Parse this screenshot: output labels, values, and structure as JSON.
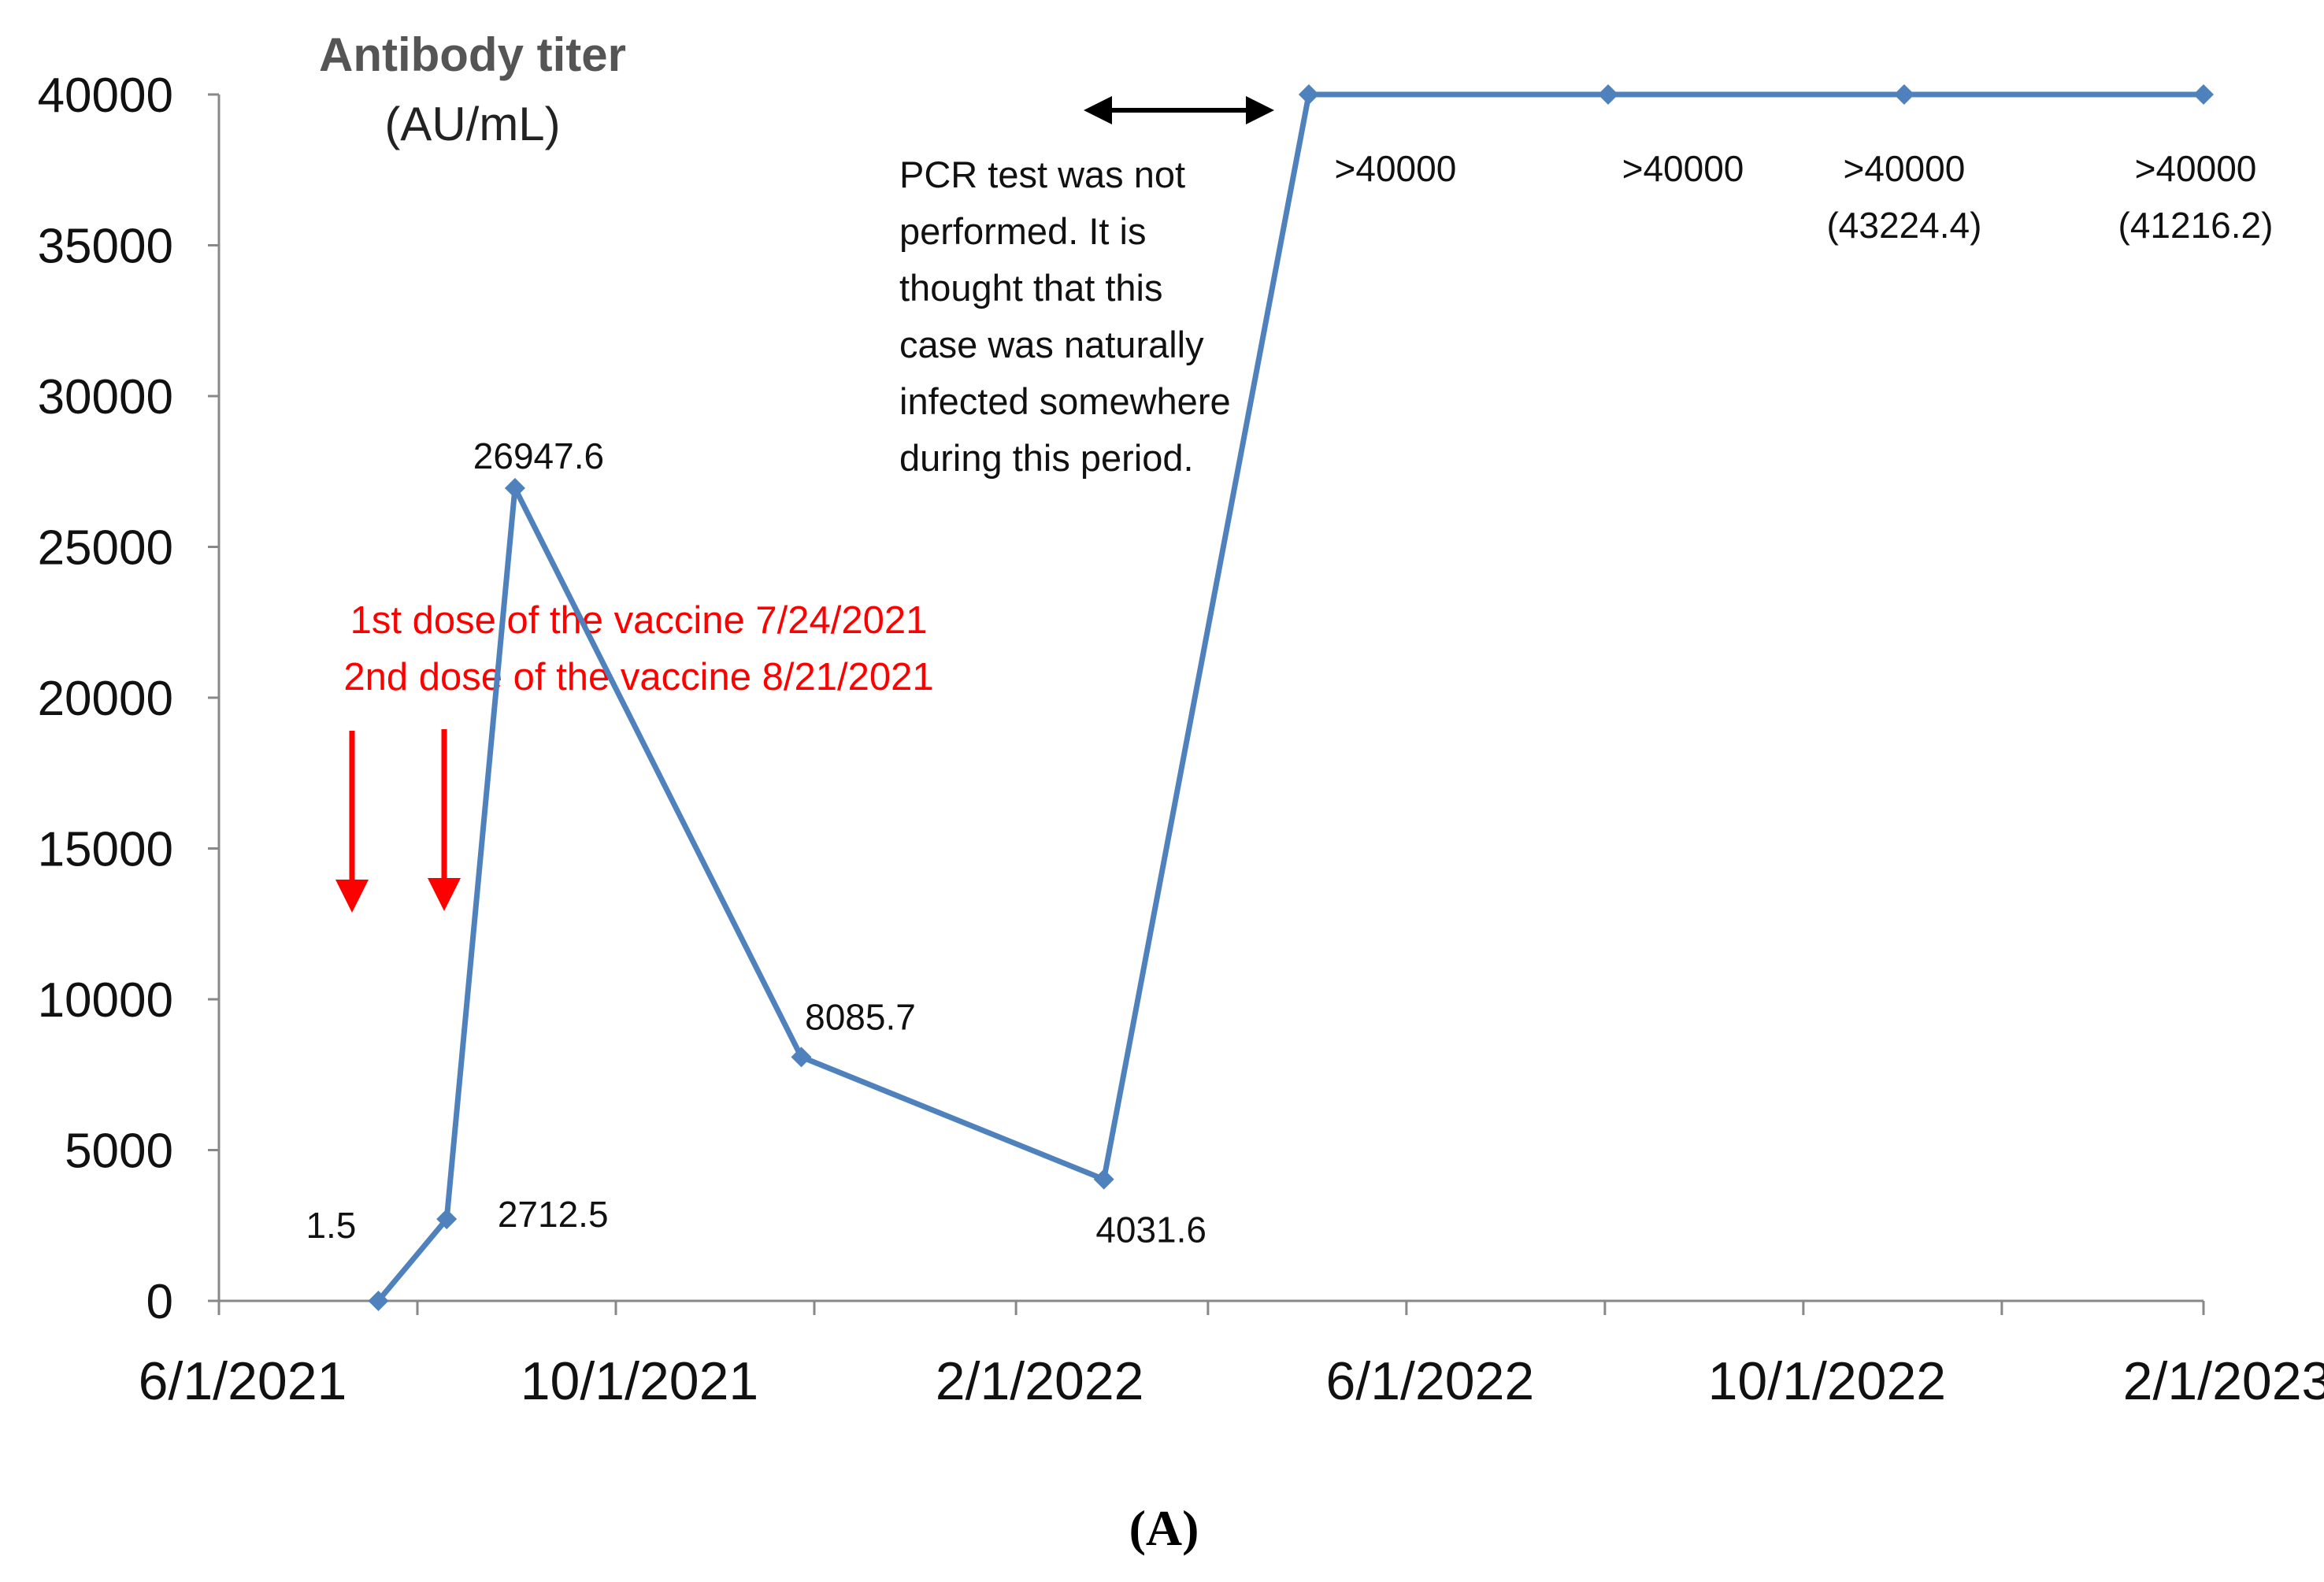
{
  "chart_data": {
    "type": "line",
    "ylabel_line1": "Antibody titer",
    "ylabel_line2": "(AU/mL)",
    "xlabel": "",
    "ylim": [
      0,
      40000
    ],
    "yticks": [
      "0",
      "5000",
      "10000",
      "15000",
      "20000",
      "25000",
      "30000",
      "35000",
      "40000"
    ],
    "xlim": [
      "2021-06-01",
      "2023-02-01"
    ],
    "xtick_dates": [
      "2021-06-01",
      "2021-08-01",
      "2021-10-01",
      "2021-12-01",
      "2022-02-01",
      "2022-04-01",
      "2022-06-01",
      "2022-08-01",
      "2022-10-01",
      "2022-12-01",
      "2023-02-01"
    ],
    "xtick_labels": [
      {
        "date": "2021-06-01",
        "label": "6/1/2021"
      },
      {
        "date": "2021-10-01",
        "label": "10/1/2021"
      },
      {
        "date": "2022-02-01",
        "label": "2/1/2022"
      },
      {
        "date": "2022-06-01",
        "label": "6/1/2022"
      },
      {
        "date": "2022-10-01",
        "label": "10/1/2022"
      },
      {
        "date": "2023-02-01",
        "label": "2/1/2023"
      }
    ],
    "grid": false,
    "line_color": "#4f81bd",
    "points": [
      {
        "x": "2021-07-20",
        "y": 1.5,
        "label": "1.5",
        "label2": ""
      },
      {
        "x": "2021-08-10",
        "y": 2712.5,
        "label": "2712.5",
        "label2": ""
      },
      {
        "x": "2021-08-31",
        "y": 26947.6,
        "label": "26947.6",
        "label2": ""
      },
      {
        "x": "2021-11-27",
        "y": 8085.7,
        "label": "8085.7",
        "label2": ""
      },
      {
        "x": "2022-02-28",
        "y": 4031.6,
        "label": "4031.6",
        "label2": ""
      },
      {
        "x": "2022-05-02",
        "y": 40000,
        "label": ">40000",
        "label2": ""
      },
      {
        "x": "2022-08-02",
        "y": 40000,
        "label": ">40000",
        "label2": ""
      },
      {
        "x": "2022-11-01",
        "y": 40000,
        "label": ">40000",
        "label2": "(43224.4)"
      },
      {
        "x": "2023-02-01",
        "y": 40000,
        "label": ">40000",
        "label2": "(41216.2)"
      }
    ],
    "annotations": {
      "pcr_note": [
        "PCR test was not",
        "performed. It is",
        "thought that this",
        "case was naturally",
        "infected somewhere",
        "during this period."
      ],
      "pcr_arrow_color": "#000000",
      "vaccine_lines": [
        "1st dose of the vaccine 7/24/2021",
        "2nd dose of the vaccine 8/21/2021"
      ],
      "vaccine_color": "#ff0000"
    },
    "panel_label": "(A)"
  }
}
